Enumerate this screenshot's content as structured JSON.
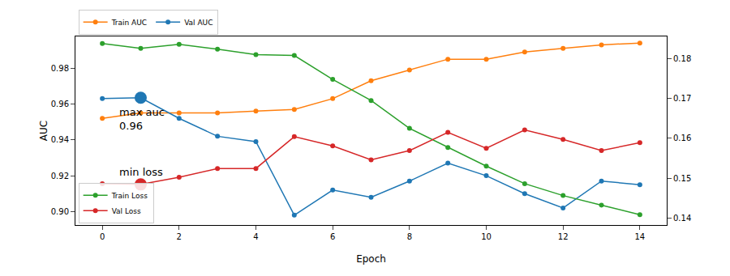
{
  "chart_data": {
    "type": "line",
    "x_label": "Epoch",
    "y_label": "AUC",
    "x": [
      0,
      1,
      2,
      3,
      4,
      5,
      6,
      7,
      8,
      9,
      10,
      11,
      12,
      13,
      14
    ],
    "xlim": [
      -0.7,
      14.7
    ],
    "xticks": [
      0,
      2,
      4,
      6,
      8,
      10,
      12,
      14
    ],
    "ylim": [
      0.8925,
      0.9977
    ],
    "yticks": [
      {
        "value": 0.9,
        "label": "0.90"
      },
      0.92,
      0.94,
      0.96,
      0.98
    ],
    "y2lim": [
      0.1382,
      0.1856
    ],
    "y2ticks": [
      0.14,
      0.15,
      0.16,
      0.17,
      0.18
    ],
    "grid": false,
    "series": [
      {
        "name": "Train AUC",
        "color": "#ff7f0e",
        "marker": "circle",
        "legend": "upper left",
        "values": [
          0.952,
          0.955,
          0.955,
          0.955,
          0.956,
          0.957,
          0.963,
          0.973,
          0.979,
          0.985,
          0.985,
          0.989,
          0.991,
          0.993,
          0.994
        ]
      },
      {
        "name": "Val AUC",
        "color": "#1f77b4",
        "marker": "circle",
        "legend": "upper left",
        "values": [
          0.963,
          0.9635,
          0.952,
          0.942,
          0.939,
          0.898,
          0.912,
          0.908,
          0.917,
          0.927,
          0.92,
          0.91,
          0.902,
          0.917,
          0.915
        ]
      },
      {
        "name": "Train Loss",
        "color": "#2ca02c",
        "marker": "circle",
        "legend": "lower left",
        "axis": "y2",
        "values": [
          0.1838,
          0.1826,
          0.1836,
          0.1824,
          0.181,
          0.1808,
          0.1748,
          0.1695,
          0.1625,
          0.1577,
          0.153,
          0.1486,
          0.1456,
          0.1432,
          0.1408
        ]
      },
      {
        "name": "Val Loss",
        "color": "#d62728",
        "marker": "circle",
        "legend": "lower left",
        "axis": "y2",
        "values": [
          0.1486,
          0.1484,
          0.1502,
          0.1524,
          0.1524,
          0.1604,
          0.1581,
          0.1546,
          0.1569,
          0.1615,
          0.1575,
          0.1621,
          0.1597,
          0.1569,
          0.1589
        ]
      }
    ],
    "annotations": [
      {
        "text": "max auc\n0.96",
        "x": 1,
        "y": 0.9635,
        "axis": "y",
        "color": "#1f77b4"
      },
      {
        "text": "min loss",
        "x": 1,
        "y": 0.1484,
        "axis": "y2",
        "color": "#d62728"
      }
    ]
  }
}
